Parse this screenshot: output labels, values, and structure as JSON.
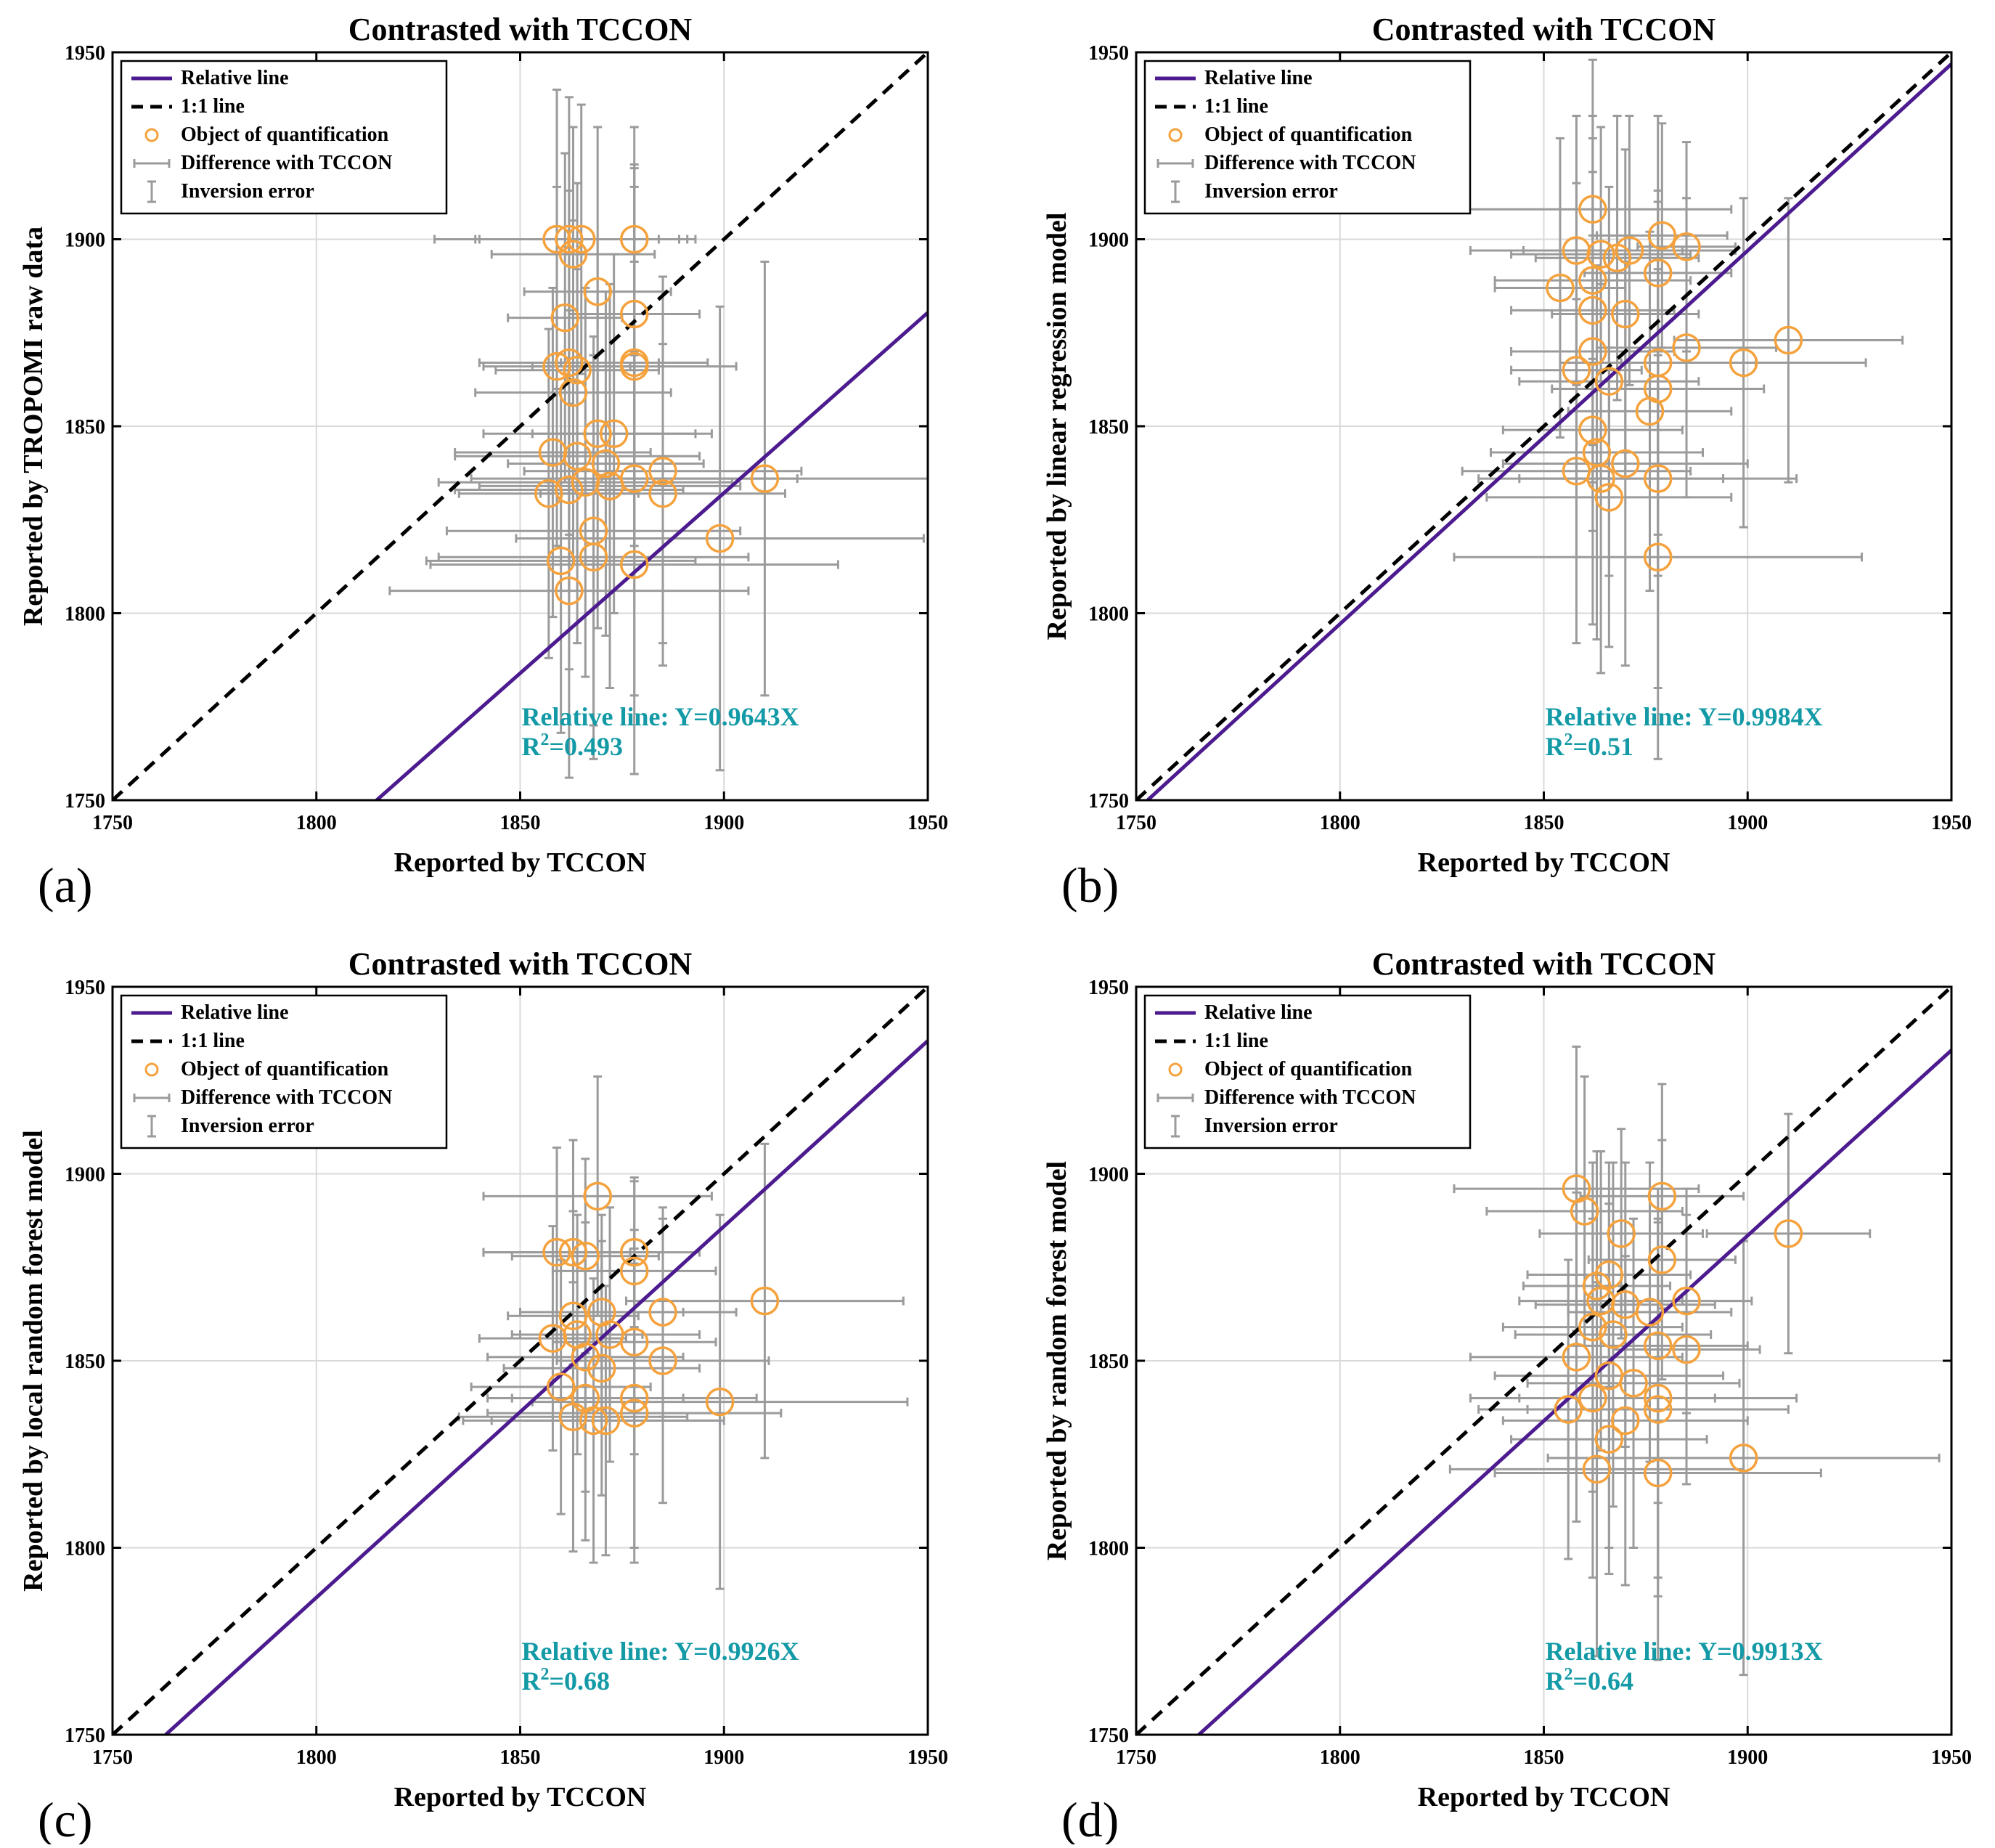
{
  "colors": {
    "relative_line": "#4b1b8f",
    "one_to_one": "#000000",
    "marker": "#f5a23d",
    "errorbar": "#9b9b9b",
    "grid": "#d9d9d9",
    "annotation": "#139aa6"
  },
  "chart_data": [
    {
      "type": "scatter",
      "panel_label": "(a)",
      "title": "Contrasted with TCCON",
      "xlabel": "Reported by TCCON",
      "ylabel": "Reported by TROPOMI raw data",
      "xlim": [
        1750,
        1950
      ],
      "ylim": [
        1750,
        1950
      ],
      "xticks": [
        "1750",
        "1800",
        "1850",
        "1900",
        "1950"
      ],
      "yticks": [
        "1750",
        "1800",
        "1850",
        "1900",
        "1950"
      ],
      "grid": true,
      "legend": {
        "position": "top-left",
        "entries": [
          "Relative line",
          "1:1 line",
          "Object of quantification",
          "Difference with TCCON",
          "Inversion error"
        ]
      },
      "relative_line": {
        "slope": 0.9643
      },
      "annotation": {
        "line": "Relative line: Y=0.9643X",
        "r2_prefix": "R",
        "r2_sup": "2",
        "r2_value": "=0.493"
      },
      "points": [
        {
          "x": 1859,
          "y": 1900,
          "xerr": 30,
          "yerr": 40
        },
        {
          "x": 1862,
          "y": 1900,
          "xerr": 22,
          "yerr": 38
        },
        {
          "x": 1865,
          "y": 1900,
          "xerr": 26,
          "yerr": 36
        },
        {
          "x": 1863,
          "y": 1896,
          "xerr": 20,
          "yerr": 34
        },
        {
          "x": 1878,
          "y": 1900,
          "xerr": 15,
          "yerr": 30
        },
        {
          "x": 1869,
          "y": 1886,
          "xerr": 18,
          "yerr": 44
        },
        {
          "x": 1878,
          "y": 1880,
          "xerr": 16,
          "yerr": 40
        },
        {
          "x": 1861,
          "y": 1879,
          "xerr": 14,
          "yerr": 44
        },
        {
          "x": 1859,
          "y": 1866,
          "xerr": 18,
          "yerr": 48
        },
        {
          "x": 1862,
          "y": 1867,
          "xerr": 22,
          "yerr": 46
        },
        {
          "x": 1864,
          "y": 1865,
          "xerr": 20,
          "yerr": 50
        },
        {
          "x": 1878,
          "y": 1867,
          "xerr": 18,
          "yerr": 52
        },
        {
          "x": 1878,
          "y": 1866,
          "xerr": 25,
          "yerr": 48
        },
        {
          "x": 1863,
          "y": 1859,
          "xerr": 24,
          "yerr": 46
        },
        {
          "x": 1869,
          "y": 1848,
          "xerr": 28,
          "yerr": 52
        },
        {
          "x": 1873,
          "y": 1848,
          "xerr": 20,
          "yerr": 48
        },
        {
          "x": 1858,
          "y": 1843,
          "xerr": 24,
          "yerr": 44
        },
        {
          "x": 1864,
          "y": 1842,
          "xerr": 30,
          "yerr": 50
        },
        {
          "x": 1871,
          "y": 1840,
          "xerr": 24,
          "yerr": 46
        },
        {
          "x": 1866,
          "y": 1835,
          "xerr": 36,
          "yerr": 52
        },
        {
          "x": 1872,
          "y": 1834,
          "xerr": 32,
          "yerr": 54
        },
        {
          "x": 1878,
          "y": 1836,
          "xerr": 40,
          "yerr": 58
        },
        {
          "x": 1885,
          "y": 1838,
          "xerr": 34,
          "yerr": 52
        },
        {
          "x": 1857,
          "y": 1832,
          "xerr": 22,
          "yerr": 44
        },
        {
          "x": 1862,
          "y": 1833,
          "xerr": 28,
          "yerr": 48
        },
        {
          "x": 1885,
          "y": 1832,
          "xerr": 30,
          "yerr": 40
        },
        {
          "x": 1910,
          "y": 1836,
          "xerr": 40,
          "yerr": 58
        },
        {
          "x": 1868,
          "y": 1822,
          "xerr": 36,
          "yerr": 52
        },
        {
          "x": 1899,
          "y": 1820,
          "xerr": 50,
          "yerr": 62
        },
        {
          "x": 1860,
          "y": 1814,
          "xerr": 33,
          "yerr": 46
        },
        {
          "x": 1868,
          "y": 1815,
          "xerr": 38,
          "yerr": 54
        },
        {
          "x": 1878,
          "y": 1813,
          "xerr": 50,
          "yerr": 56
        },
        {
          "x": 1862,
          "y": 1806,
          "xerr": 44,
          "yerr": 50
        }
      ]
    },
    {
      "type": "scatter",
      "panel_label": "(b)",
      "title": "Contrasted with TCCON",
      "xlabel": "Reported by TCCON",
      "ylabel": "Reported by linear regression model",
      "xlim": [
        1750,
        1950
      ],
      "ylim": [
        1750,
        1950
      ],
      "xticks": [
        "1750",
        "1800",
        "1850",
        "1900",
        "1950"
      ],
      "yticks": [
        "1750",
        "1800",
        "1850",
        "1900",
        "1950"
      ],
      "grid": true,
      "legend": {
        "position": "top-left",
        "entries": [
          "Relative line",
          "1:1 line",
          "Object of quantification",
          "Difference with TCCON",
          "Inversion error"
        ]
      },
      "relative_line": {
        "slope": 0.9984
      },
      "annotation": {
        "line": "Relative line: Y=0.9984X",
        "r2_prefix": "R",
        "r2_sup": "2",
        "r2_value": "=0.51"
      },
      "points": [
        {
          "x": 1862,
          "y": 1908,
          "xerr": 34,
          "yerr": 40
        },
        {
          "x": 1858,
          "y": 1897,
          "xerr": 26,
          "yerr": 36
        },
        {
          "x": 1864,
          "y": 1896,
          "xerr": 22,
          "yerr": 34
        },
        {
          "x": 1868,
          "y": 1895,
          "xerr": 20,
          "yerr": 38
        },
        {
          "x": 1871,
          "y": 1897,
          "xerr": 26,
          "yerr": 36
        },
        {
          "x": 1879,
          "y": 1901,
          "xerr": 16,
          "yerr": 30
        },
        {
          "x": 1885,
          "y": 1898,
          "xerr": 12,
          "yerr": 28
        },
        {
          "x": 1854,
          "y": 1887,
          "xerr": 16,
          "yerr": 40
        },
        {
          "x": 1862,
          "y": 1889,
          "xerr": 24,
          "yerr": 44
        },
        {
          "x": 1878,
          "y": 1891,
          "xerr": 18,
          "yerr": 42
        },
        {
          "x": 1862,
          "y": 1881,
          "xerr": 20,
          "yerr": 46
        },
        {
          "x": 1870,
          "y": 1880,
          "xerr": 18,
          "yerr": 44
        },
        {
          "x": 1885,
          "y": 1871,
          "xerr": 22,
          "yerr": 40
        },
        {
          "x": 1910,
          "y": 1873,
          "xerr": 28,
          "yerr": 38
        },
        {
          "x": 1899,
          "y": 1867,
          "xerr": 30,
          "yerr": 44
        },
        {
          "x": 1862,
          "y": 1870,
          "xerr": 20,
          "yerr": 48
        },
        {
          "x": 1858,
          "y": 1865,
          "xerr": 16,
          "yerr": 50
        },
        {
          "x": 1866,
          "y": 1862,
          "xerr": 22,
          "yerr": 52
        },
        {
          "x": 1878,
          "y": 1867,
          "xerr": 24,
          "yerr": 46
        },
        {
          "x": 1878,
          "y": 1860,
          "xerr": 26,
          "yerr": 50
        },
        {
          "x": 1876,
          "y": 1854,
          "xerr": 20,
          "yerr": 48
        },
        {
          "x": 1862,
          "y": 1849,
          "xerr": 22,
          "yerr": 52
        },
        {
          "x": 1863,
          "y": 1843,
          "xerr": 26,
          "yerr": 50
        },
        {
          "x": 1870,
          "y": 1840,
          "xerr": 30,
          "yerr": 54
        },
        {
          "x": 1858,
          "y": 1838,
          "xerr": 28,
          "yerr": 46
        },
        {
          "x": 1864,
          "y": 1836,
          "xerr": 30,
          "yerr": 52
        },
        {
          "x": 1878,
          "y": 1836,
          "xerr": 34,
          "yerr": 56
        },
        {
          "x": 1866,
          "y": 1831,
          "xerr": 30,
          "yerr": 40
        },
        {
          "x": 1878,
          "y": 1815,
          "xerr": 50,
          "yerr": 54
        }
      ]
    },
    {
      "type": "scatter",
      "panel_label": "(c)",
      "title": "Contrasted with TCCON",
      "xlabel": "Reported by TCCON",
      "ylabel": "Reported by local random forest model",
      "xlim": [
        1750,
        1950
      ],
      "ylim": [
        1750,
        1950
      ],
      "xticks": [
        "1750",
        "1800",
        "1850",
        "1900",
        "1950"
      ],
      "yticks": [
        "1750",
        "1800",
        "1850",
        "1900",
        "1950"
      ],
      "grid": true,
      "legend": {
        "position": "top-left",
        "entries": [
          "Relative line",
          "1:1 line",
          "Object of quantification",
          "Difference with TCCON",
          "Inversion error"
        ]
      },
      "relative_line": {
        "slope": 0.9926
      },
      "annotation": {
        "line": "Relative line: Y=0.9926X",
        "r2_prefix": "R",
        "r2_sup": "2",
        "r2_value": "=0.68"
      },
      "points": [
        {
          "x": 1869,
          "y": 1894,
          "xerr": 28,
          "yerr": 32
        },
        {
          "x": 1859,
          "y": 1879,
          "xerr": 18,
          "yerr": 28
        },
        {
          "x": 1863,
          "y": 1879,
          "xerr": 22,
          "yerr": 30
        },
        {
          "x": 1866,
          "y": 1878,
          "xerr": 18,
          "yerr": 26
        },
        {
          "x": 1878,
          "y": 1879,
          "xerr": 16,
          "yerr": 20
        },
        {
          "x": 1878,
          "y": 1874,
          "xerr": 20,
          "yerr": 24
        },
        {
          "x": 1863,
          "y": 1862,
          "xerr": 16,
          "yerr": 28
        },
        {
          "x": 1870,
          "y": 1863,
          "xerr": 20,
          "yerr": 26
        },
        {
          "x": 1885,
          "y": 1863,
          "xerr": 18,
          "yerr": 28
        },
        {
          "x": 1910,
          "y": 1866,
          "xerr": 34,
          "yerr": 42
        },
        {
          "x": 1858,
          "y": 1856,
          "xerr": 18,
          "yerr": 30
        },
        {
          "x": 1864,
          "y": 1857,
          "xerr": 16,
          "yerr": 32
        },
        {
          "x": 1872,
          "y": 1857,
          "xerr": 22,
          "yerr": 34
        },
        {
          "x": 1878,
          "y": 1855,
          "xerr": 20,
          "yerr": 30
        },
        {
          "x": 1866,
          "y": 1851,
          "xerr": 24,
          "yerr": 36
        },
        {
          "x": 1870,
          "y": 1848,
          "xerr": 24,
          "yerr": 34
        },
        {
          "x": 1885,
          "y": 1850,
          "xerr": 26,
          "yerr": 38
        },
        {
          "x": 1860,
          "y": 1843,
          "xerr": 22,
          "yerr": 34
        },
        {
          "x": 1866,
          "y": 1840,
          "xerr": 24,
          "yerr": 38
        },
        {
          "x": 1878,
          "y": 1840,
          "xerr": 30,
          "yerr": 40
        },
        {
          "x": 1899,
          "y": 1839,
          "xerr": 46,
          "yerr": 50
        },
        {
          "x": 1863,
          "y": 1835,
          "xerr": 28,
          "yerr": 36
        },
        {
          "x": 1868,
          "y": 1834,
          "xerr": 32,
          "yerr": 38
        },
        {
          "x": 1871,
          "y": 1834,
          "xerr": 28,
          "yerr": 36
        },
        {
          "x": 1878,
          "y": 1836,
          "xerr": 36,
          "yerr": 40
        }
      ]
    },
    {
      "type": "scatter",
      "panel_label": "(d)",
      "title": "Contrasted with TCCON",
      "xlabel": "Reported by TCCON",
      "ylabel": "Reported by random forest model",
      "xlim": [
        1750,
        1950
      ],
      "ylim": [
        1750,
        1950
      ],
      "xticks": [
        "1750",
        "1800",
        "1850",
        "1900",
        "1950"
      ],
      "yticks": [
        "1750",
        "1800",
        "1850",
        "1900",
        "1950"
      ],
      "grid": true,
      "legend": {
        "position": "top-left",
        "entries": [
          "Relative line",
          "1:1 line",
          "Object of quantification",
          "Difference with TCCON",
          "Inversion error"
        ]
      },
      "relative_line": {
        "slope": 0.9913
      },
      "annotation": {
        "line": "Relative line: Y=0.9913X",
        "r2_prefix": "R",
        "r2_sup": "2",
        "r2_value": "=0.64"
      },
      "points": [
        {
          "x": 1858,
          "y": 1896,
          "xerr": 30,
          "yerr": 38
        },
        {
          "x": 1879,
          "y": 1894,
          "xerr": 20,
          "yerr": 30
        },
        {
          "x": 1860,
          "y": 1890,
          "xerr": 24,
          "yerr": 36
        },
        {
          "x": 1869,
          "y": 1884,
          "xerr": 20,
          "yerr": 28
        },
        {
          "x": 1910,
          "y": 1884,
          "xerr": 20,
          "yerr": 32
        },
        {
          "x": 1879,
          "y": 1877,
          "xerr": 18,
          "yerr": 32
        },
        {
          "x": 1863,
          "y": 1870,
          "xerr": 18,
          "yerr": 36
        },
        {
          "x": 1866,
          "y": 1873,
          "xerr": 20,
          "yerr": 30
        },
        {
          "x": 1864,
          "y": 1866,
          "xerr": 20,
          "yerr": 40
        },
        {
          "x": 1870,
          "y": 1865,
          "xerr": 22,
          "yerr": 38
        },
        {
          "x": 1876,
          "y": 1863,
          "xerr": 20,
          "yerr": 40
        },
        {
          "x": 1885,
          "y": 1866,
          "xerr": 16,
          "yerr": 30
        },
        {
          "x": 1862,
          "y": 1859,
          "xerr": 22,
          "yerr": 44
        },
        {
          "x": 1867,
          "y": 1857,
          "xerr": 24,
          "yerr": 46
        },
        {
          "x": 1878,
          "y": 1854,
          "xerr": 22,
          "yerr": 42
        },
        {
          "x": 1885,
          "y": 1853,
          "xerr": 18,
          "yerr": 36
        },
        {
          "x": 1858,
          "y": 1851,
          "xerr": 26,
          "yerr": 44
        },
        {
          "x": 1866,
          "y": 1846,
          "xerr": 28,
          "yerr": 46
        },
        {
          "x": 1872,
          "y": 1844,
          "xerr": 26,
          "yerr": 44
        },
        {
          "x": 1862,
          "y": 1840,
          "xerr": 30,
          "yerr": 48
        },
        {
          "x": 1878,
          "y": 1840,
          "xerr": 34,
          "yerr": 48
        },
        {
          "x": 1856,
          "y": 1837,
          "xerr": 22,
          "yerr": 40
        },
        {
          "x": 1878,
          "y": 1837,
          "xerr": 32,
          "yerr": 50
        },
        {
          "x": 1870,
          "y": 1834,
          "xerr": 30,
          "yerr": 44
        },
        {
          "x": 1866,
          "y": 1829,
          "xerr": 24,
          "yerr": 36
        },
        {
          "x": 1899,
          "y": 1824,
          "xerr": 48,
          "yerr": 58
        },
        {
          "x": 1863,
          "y": 1821,
          "xerr": 36,
          "yerr": 50
        },
        {
          "x": 1878,
          "y": 1820,
          "xerr": 40,
          "yerr": 50
        }
      ]
    }
  ]
}
